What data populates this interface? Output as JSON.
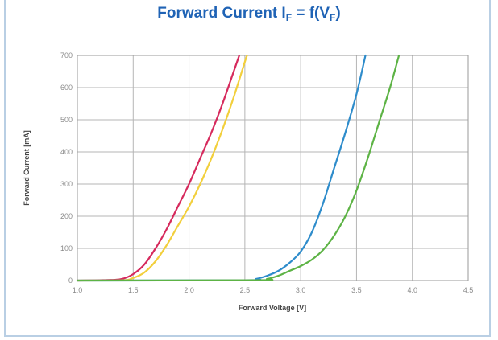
{
  "chart_data": {
    "type": "line",
    "title_prefix": "Forward Current I",
    "title_sub1": "F",
    "title_mid": " = f(V",
    "title_sub2": "F",
    "title_suffix": ")",
    "xlabel": "Forward Voltage [V]",
    "ylabel": "Forward Current [mA]",
    "xlim": [
      1.0,
      4.5
    ],
    "ylim": [
      0,
      700
    ],
    "xticks": [
      "1.0",
      "1.5",
      "2.0",
      "2.5",
      "3.0",
      "3.5",
      "4.0",
      "4.5"
    ],
    "yticks": [
      "0",
      "100",
      "200",
      "300",
      "400",
      "500",
      "600",
      "700"
    ],
    "grid": true,
    "legend": "none",
    "series": [
      {
        "color": "#d62a5d",
        "points": [
          [
            1.0,
            0
          ],
          [
            1.3,
            2
          ],
          [
            1.4,
            5
          ],
          [
            1.5,
            20
          ],
          [
            1.6,
            50
          ],
          [
            1.7,
            100
          ],
          [
            1.8,
            160
          ],
          [
            1.9,
            230
          ],
          [
            2.0,
            300
          ],
          [
            2.1,
            380
          ],
          [
            2.2,
            460
          ],
          [
            2.3,
            550
          ],
          [
            2.4,
            650
          ],
          [
            2.45,
            700
          ]
        ]
      },
      {
        "color": "#f2cf3c",
        "points": [
          [
            1.0,
            0
          ],
          [
            1.4,
            1
          ],
          [
            1.5,
            8
          ],
          [
            1.6,
            25
          ],
          [
            1.7,
            60
          ],
          [
            1.8,
            110
          ],
          [
            1.9,
            170
          ],
          [
            2.0,
            230
          ],
          [
            2.1,
            300
          ],
          [
            2.2,
            380
          ],
          [
            2.3,
            470
          ],
          [
            2.4,
            570
          ],
          [
            2.5,
            680
          ],
          [
            2.52,
            700
          ]
        ]
      },
      {
        "color": "#2e8ccb",
        "points": [
          [
            1.0,
            0
          ],
          [
            2.5,
            1
          ],
          [
            2.6,
            5
          ],
          [
            2.7,
            15
          ],
          [
            2.8,
            30
          ],
          [
            2.9,
            55
          ],
          [
            3.0,
            90
          ],
          [
            3.1,
            150
          ],
          [
            3.2,
            240
          ],
          [
            3.3,
            350
          ],
          [
            3.4,
            460
          ],
          [
            3.5,
            580
          ],
          [
            3.58,
            700
          ]
        ]
      },
      {
        "color": "#5db345",
        "points": [
          [
            1.0,
            0
          ],
          [
            2.6,
            1
          ],
          [
            2.7,
            5
          ],
          [
            2.8,
            15
          ],
          [
            2.9,
            30
          ],
          [
            3.0,
            45
          ],
          [
            3.1,
            65
          ],
          [
            3.2,
            95
          ],
          [
            3.3,
            140
          ],
          [
            3.4,
            200
          ],
          [
            3.5,
            280
          ],
          [
            3.6,
            380
          ],
          [
            3.7,
            490
          ],
          [
            3.8,
            600
          ],
          [
            3.88,
            700
          ]
        ]
      }
    ]
  }
}
